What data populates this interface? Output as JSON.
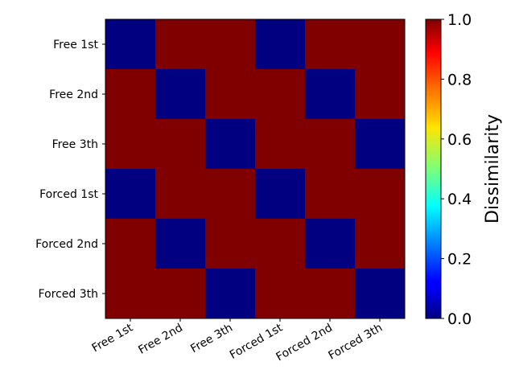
{
  "chart_data": {
    "type": "heatmap",
    "title": "",
    "rows": [
      "Free 1st",
      "Free 2nd",
      "Free 3th",
      "Forced 1st",
      "Forced 2nd",
      "Forced 3th"
    ],
    "columns": [
      "Free 1st",
      "Free 2nd",
      "Free 3th",
      "Forced 1st",
      "Forced 2nd",
      "Forced 3th"
    ],
    "values": [
      [
        0,
        1,
        1,
        0,
        1,
        1
      ],
      [
        1,
        0,
        1,
        1,
        0,
        1
      ],
      [
        1,
        1,
        0,
        1,
        1,
        0
      ],
      [
        0,
        1,
        1,
        0,
        1,
        1
      ],
      [
        1,
        0,
        1,
        1,
        0,
        1
      ],
      [
        1,
        1,
        0,
        1,
        1,
        0
      ]
    ],
    "colormap": "jet",
    "colorbar": {
      "label": "Dissimilarity",
      "range": [
        0.0,
        1.0
      ],
      "ticks": [
        "0.0",
        "0.2",
        "0.4",
        "0.6",
        "0.8",
        "1.0"
      ]
    },
    "colors": {
      "low": "#00007f",
      "high": "#7f0000"
    }
  }
}
